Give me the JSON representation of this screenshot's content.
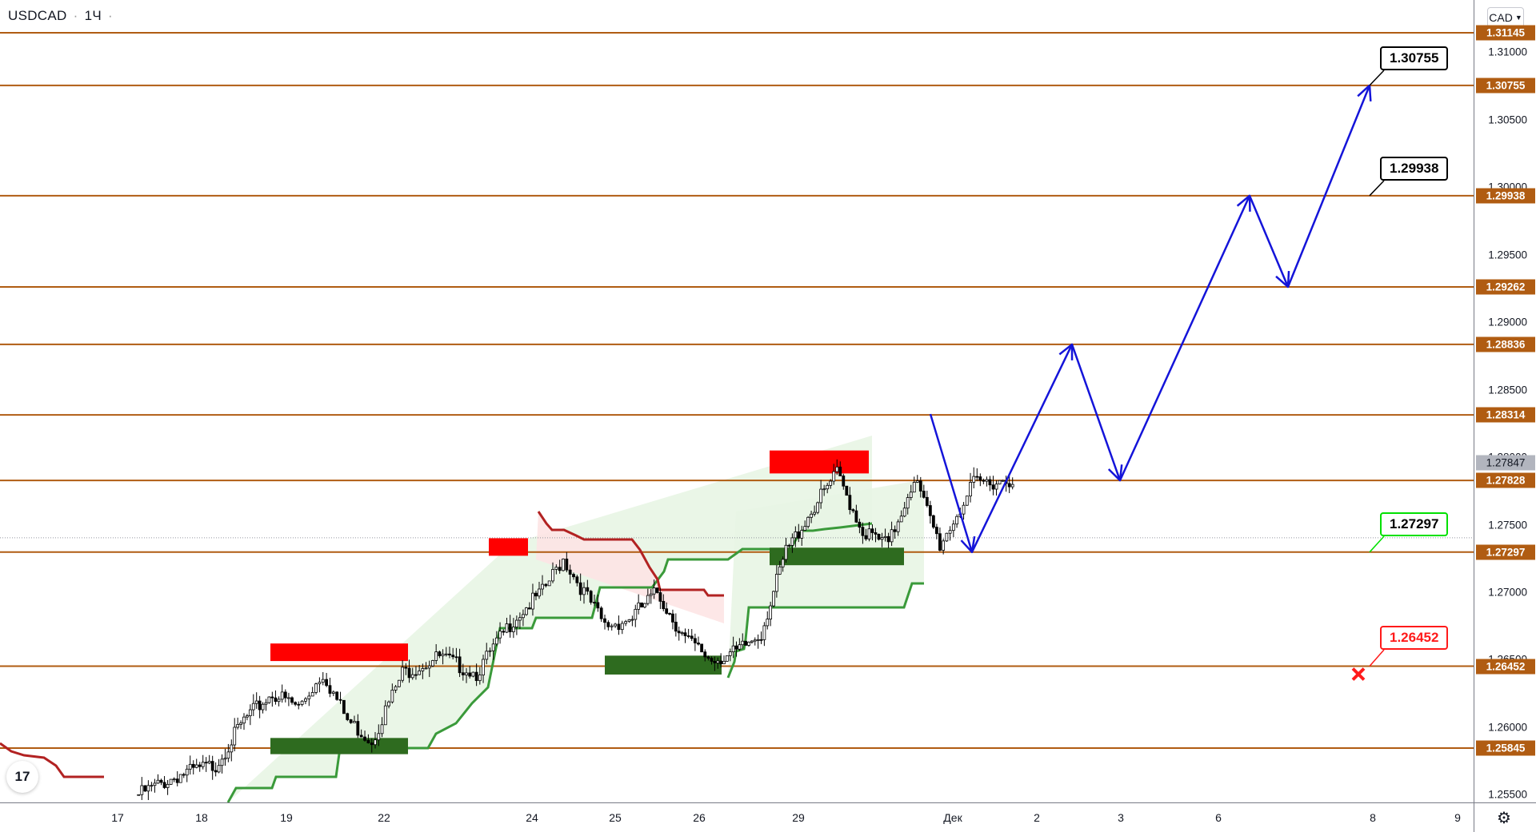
{
  "header": {
    "symbol": "USDCAD",
    "interval": "1Ч",
    "currency": "CAD"
  },
  "price_axis": {
    "ticks": [
      "1.31000",
      "1.30500",
      "1.30000",
      "1.29500",
      "1.29000",
      "1.28500",
      "1.28000",
      "1.27500",
      "1.27000",
      "1.26500",
      "1.26000",
      "1.25500"
    ],
    "level_tags": [
      "1.31145",
      "1.30755",
      "1.29938",
      "1.29262",
      "1.28836",
      "1.28314",
      "1.27828",
      "1.27297",
      "1.26452",
      "1.25845"
    ],
    "last_price": "1.27847"
  },
  "time_axis": {
    "labels": [
      "17",
      "18",
      "19",
      "22",
      "24",
      "25",
      "26",
      "29",
      "Дек",
      "2",
      "3",
      "6",
      "8",
      "9"
    ]
  },
  "callouts": {
    "target1": "1.30755",
    "target2": "1.29938",
    "entry": "1.27297",
    "stop": "1.26452"
  },
  "icons": {
    "logo": "tradingview-logo-icon",
    "settings": "gear-icon",
    "stop_mark": "cross-icon"
  },
  "colors": {
    "level_line": "#b05c12",
    "bull_zone": "#2e6b1f",
    "bear_zone": "#ff0000",
    "projection": "#1414d9",
    "entry": "#00e000",
    "stop": "#ff1a1a",
    "trail_up": "#3a9a3a",
    "trail_down": "#b22222"
  },
  "chart_data": {
    "type": "candlestick",
    "symbol": "USDCAD",
    "interval": "1Ч",
    "ylim": [
      1.2535,
      1.3125
    ],
    "horizontal_levels": [
      1.31145,
      1.30755,
      1.29938,
      1.29262,
      1.28836,
      1.28314,
      1.27828,
      1.27297,
      1.26452,
      1.25845
    ],
    "last_price": 1.27847,
    "price_path": [
      [
        "17",
        1.255
      ],
      [
        "17",
        1.2565
      ],
      [
        "18",
        1.2572
      ],
      [
        "18",
        1.2605
      ],
      [
        "18",
        1.2625
      ],
      [
        "19",
        1.2615
      ],
      [
        "19",
        1.264
      ],
      [
        "19",
        1.2605
      ],
      [
        "19",
        1.259
      ],
      [
        "22",
        1.264
      ],
      [
        "22",
        1.2652
      ],
      [
        "22",
        1.264
      ],
      [
        "22",
        1.268
      ],
      [
        "24",
        1.27
      ],
      [
        "24",
        1.2725
      ],
      [
        "24",
        1.27
      ],
      [
        "24",
        1.2675
      ],
      [
        "25",
        1.268
      ],
      [
        "25",
        1.27
      ],
      [
        "25",
        1.2665
      ],
      [
        "26",
        1.265
      ],
      [
        "26",
        1.2655
      ],
      [
        "26",
        1.267
      ],
      [
        "26",
        1.273
      ],
      [
        "29",
        1.276
      ],
      [
        "29",
        1.2788
      ],
      [
        "29",
        1.2745
      ],
      [
        "29",
        1.2735
      ],
      [
        "29",
        1.2785
      ],
      [
        "29",
        1.2735
      ],
      [
        "Дек",
        1.278
      ],
      [
        "Дек",
        1.27847
      ]
    ],
    "zones": [
      {
        "kind": "resistance",
        "from": "19",
        "to": "22",
        "top": 1.2662,
        "bottom": 1.2649
      },
      {
        "kind": "support",
        "from": "19",
        "to": "22",
        "top": 1.2592,
        "bottom": 1.258
      },
      {
        "kind": "resistance",
        "from": "24",
        "to": "24",
        "top": 1.274,
        "bottom": 1.2727
      },
      {
        "kind": "support",
        "from": "25",
        "to": "26",
        "top": 1.2653,
        "bottom": 1.2639
      },
      {
        "kind": "resistance",
        "from": "29",
        "to": "29",
        "top": 1.2805,
        "bottom": 1.2788
      },
      {
        "kind": "support",
        "from": "29",
        "to": "29",
        "top": 1.2733,
        "bottom": 1.272
      }
    ],
    "projection_path": [
      [
        "Дек",
        1.2832
      ],
      [
        "Дек",
        1.27297
      ],
      [
        "2",
        1.28836
      ],
      [
        "3",
        1.27828
      ],
      [
        "6",
        1.29938
      ],
      [
        "6",
        1.29262
      ],
      [
        "8",
        1.30755
      ]
    ],
    "entry": 1.27297,
    "take_profit": [
      1.29938,
      1.30755
    ],
    "stop": 1.26452
  }
}
